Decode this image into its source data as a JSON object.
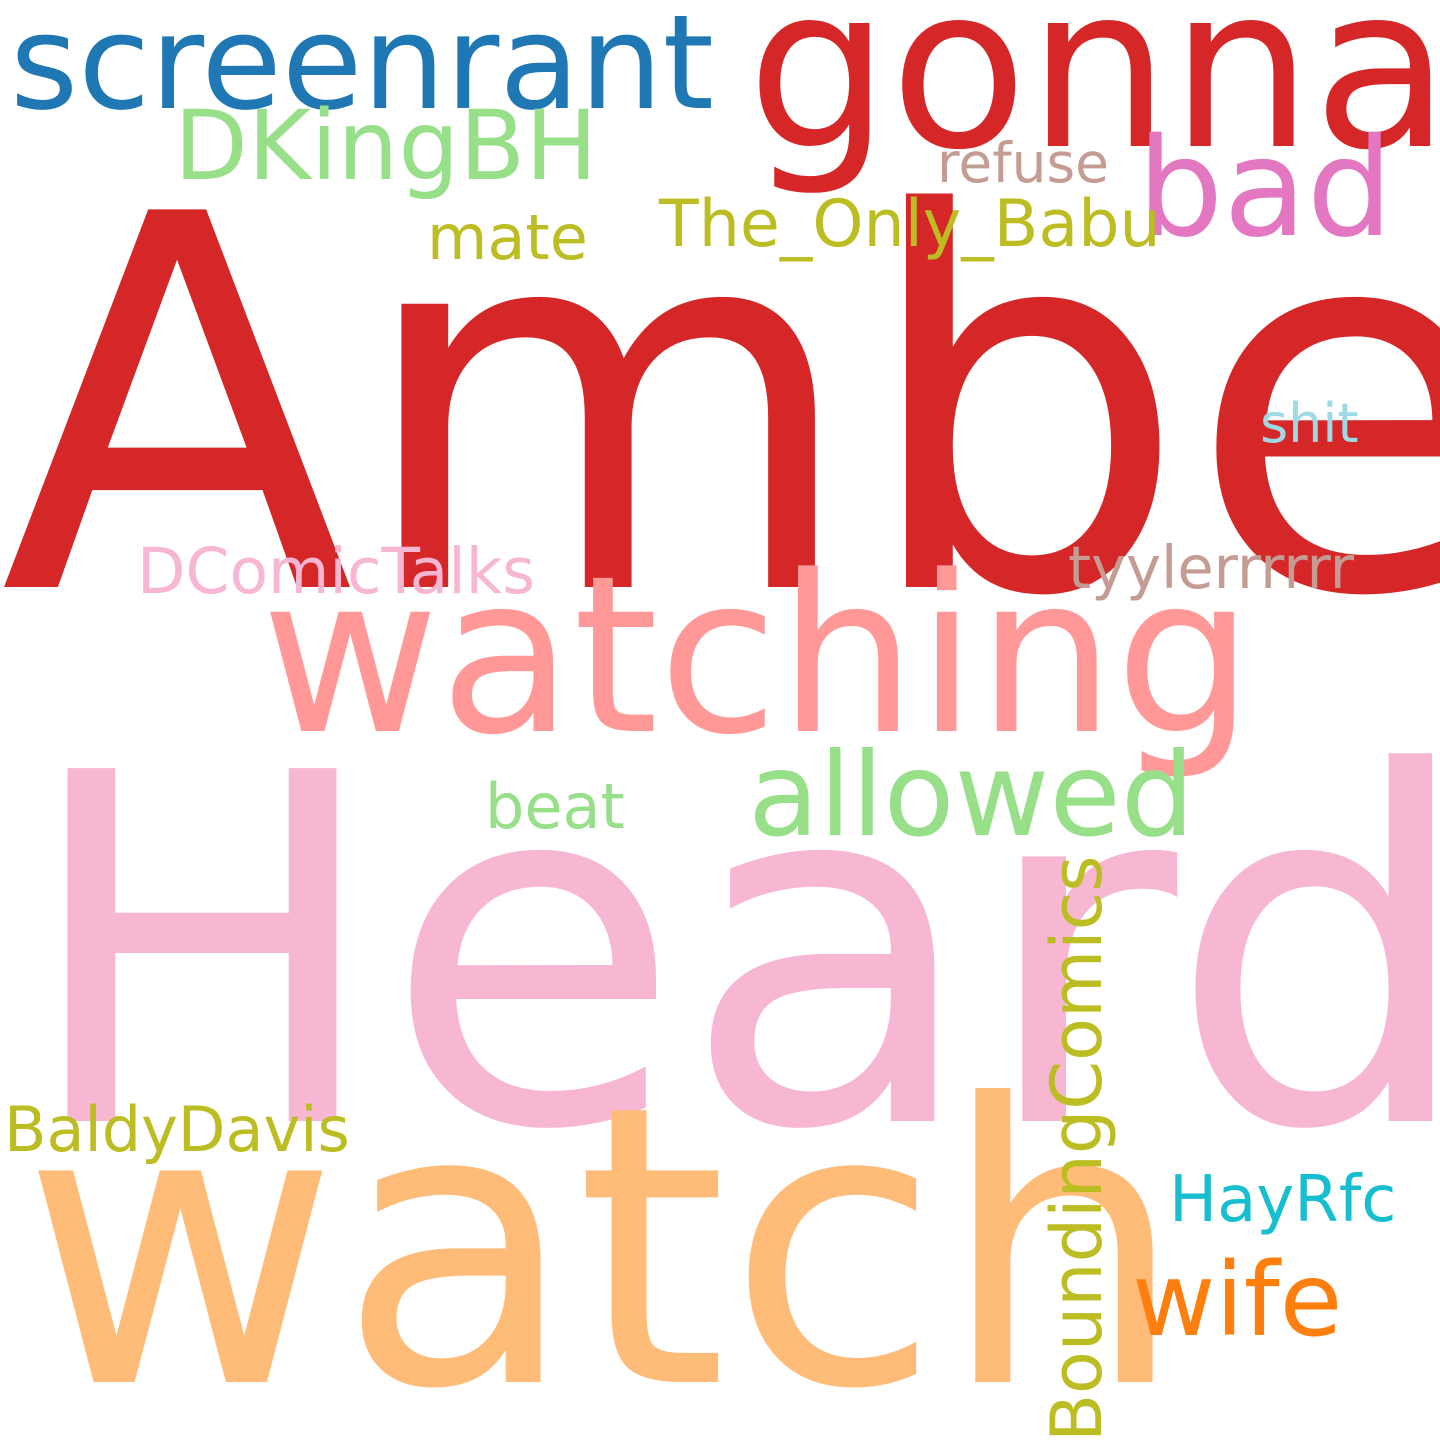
{
  "words": [
    {
      "key": "amber",
      "text": "Amber",
      "color": "#d62728"
    },
    {
      "key": "heard",
      "text": "Heard",
      "color": "#f7b6d2"
    },
    {
      "key": "watch",
      "text": "watch",
      "color": "#ffbb78"
    },
    {
      "key": "watching",
      "text": "watching",
      "color": "#ff9896"
    },
    {
      "key": "gonna",
      "text": "gonna",
      "color": "#d62728"
    },
    {
      "key": "screenrant",
      "text": "screenrant",
      "color": "#1f77b4"
    },
    {
      "key": "dkingbh",
      "text": "DKingBH",
      "color": "#98df8a"
    },
    {
      "key": "bad",
      "text": "bad",
      "color": "#e377c2"
    },
    {
      "key": "allowed",
      "text": "allowed",
      "color": "#98df8a"
    },
    {
      "key": "wife",
      "text": "wife",
      "color": "#ff7f0e"
    },
    {
      "key": "boundingcomics",
      "text": "BoundingComics",
      "color": "#bcbd22"
    },
    {
      "key": "the_only_babu",
      "text": "The_Only_Babu",
      "color": "#bcbd22"
    },
    {
      "key": "dcomictalks",
      "text": "DComicTalks",
      "color": "#f7b6d2"
    },
    {
      "key": "tyylerrrrrr",
      "text": "tyylerrrrrr",
      "color": "#c49c94"
    },
    {
      "key": "baldydavis",
      "text": "BaldyDavis",
      "color": "#bcbd22"
    },
    {
      "key": "hayrfc",
      "text": "HayRfc",
      "color": "#17becf"
    },
    {
      "key": "refuse",
      "text": "refuse",
      "color": "#c49c94"
    },
    {
      "key": "mate",
      "text": "mate",
      "color": "#bcbd22"
    },
    {
      "key": "beat",
      "text": "beat",
      "color": "#98df8a"
    },
    {
      "key": "shit",
      "text": "shit",
      "color": "#9edae5"
    }
  ]
}
